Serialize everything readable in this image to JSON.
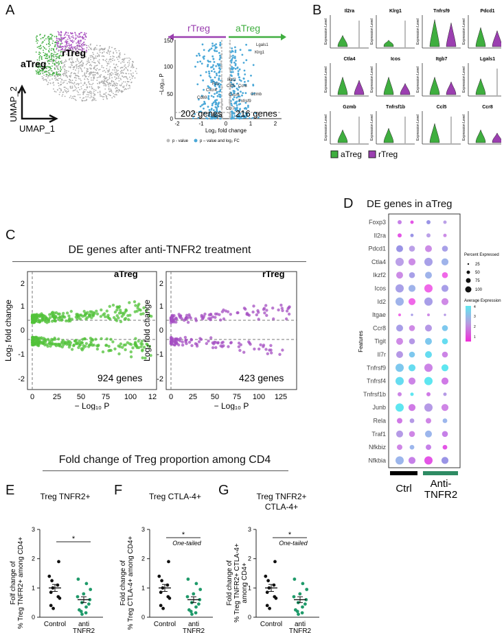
{
  "panel_letters": {
    "A": "A",
    "B": "B",
    "C": "C",
    "D": "D",
    "E": "E",
    "F": "F",
    "G": "G"
  },
  "panelA": {
    "umap_label_a": "aTreg",
    "umap_label_r": "rTreg",
    "axis_x": "UMAP_1",
    "axis_y": "UMAP_2",
    "volcano": {
      "arrow_left": "rTreg",
      "arrow_right": "aTreg",
      "ylabel": "−Log₁₀ P",
      "xlabel": "Log₂ fold change",
      "yticks": [
        "0",
        "50",
        "100",
        "150"
      ],
      "xticks": [
        "-2",
        "-1",
        "0",
        "1",
        "2"
      ],
      "count_left": "202 genes",
      "count_right": "216 genes",
      "gene_labels": [
        "Lgals1",
        "Klrg1",
        "Ikzf2",
        "Ccr8",
        "Ccl5",
        "Gzmb",
        "Cxcr6",
        "Tnfrsf9",
        "Cd69",
        "Cxcr4",
        "Fos",
        "S1pr1",
        "Ccr7"
      ],
      "legend_1": "p - value",
      "legend_2": "p – value and log₂ FC"
    }
  },
  "panelB": {
    "genes": [
      "Il2ra",
      "Klrg1",
      "Tnfrsf9",
      "Pdcd1",
      "Ctla4",
      "Icos",
      "Itgb7",
      "Lgals1",
      "Gzmb",
      "Tnfrsf1b",
      "Ccl5",
      "Ccr8"
    ],
    "ylabel": "Expression Level",
    "legend_a": "aTreg",
    "legend_r": "rTreg",
    "colors": {
      "a": "#3fae3f",
      "r": "#9b3fb0"
    }
  },
  "panelC": {
    "title": "DE genes after anti-TNFR2 treatment",
    "left_title": "aTreg",
    "right_title": "rTreg",
    "ylabel": "Log₂ fold change",
    "xlabel": "− Log₁₀ P",
    "left_count": "924 genes",
    "right_count": "423 genes",
    "left_xticks": [
      "0",
      "25",
      "50",
      "75",
      "100"
    ],
    "right_xticks": [
      "0",
      "25",
      "50",
      "75",
      "100",
      "125"
    ],
    "yticks": [
      "2",
      "1",
      "0",
      "-1",
      "-2"
    ]
  },
  "panelD": {
    "title": "DE genes in aTreg",
    "features_label": "Features",
    "genes": [
      "Foxp3",
      "Il2ra",
      "Pdcd1",
      "Ctla4",
      "Ikzf2",
      "Icos",
      "Id2",
      "Itgae",
      "Ccr8",
      "Tigit",
      "Il7r",
      "Tnfrsf9",
      "Tnfrsf4",
      "Tnfrsf1b",
      "Junb",
      "Rela",
      "Traf1",
      "Nfkbiz",
      "Nfkbia"
    ],
    "pct_title": "Percent Expressed",
    "pct_values": [
      "25",
      "50",
      "75",
      "100"
    ],
    "avg_title": "Average Expression",
    "avg_ticks": [
      "4",
      "3",
      "2",
      "1"
    ],
    "group_ctrl": "Ctrl",
    "group_anti_1": "Anti-",
    "group_anti_2": "TNFR2"
  },
  "fold_title": "Fold change of Treg proportion among CD4",
  "panelE": {
    "title": "Treg TNFR2+",
    "ylabel_1": "Folf change of",
    "ylabel_2": "% Treg TNFR2+ among CD4+",
    "star": "*",
    "note": "",
    "cat1": "Control",
    "cat2_1": "anti",
    "cat2_2": "TNFR2",
    "yticks": [
      "0",
      "1",
      "2",
      "3"
    ]
  },
  "panelF": {
    "title": "Treg CTLA-4+",
    "ylabel_1": "Fold change of",
    "ylabel_2": "% Treg CTLA-4+ among CD4+",
    "star": "*",
    "note": "One-tailed",
    "cat1": "Control",
    "cat2_1": "anti",
    "cat2_2": "TNFR2",
    "yticks": [
      "0",
      "1",
      "2",
      "3"
    ]
  },
  "panelG": {
    "title_1": "Treg TNFR2+",
    "title_2": "CTLA-4+",
    "ylabel_1": "Fold change of",
    "ylabel_2": "% Treg TNFR2+ CTLA-4+",
    "ylabel_3": "among CD4+",
    "star": "*",
    "note": "One-tailed",
    "cat1": "Control",
    "cat2_1": "anti",
    "cat2_2": "TNFR2",
    "yticks": [
      "0",
      "1",
      "2",
      "3"
    ]
  }
}
